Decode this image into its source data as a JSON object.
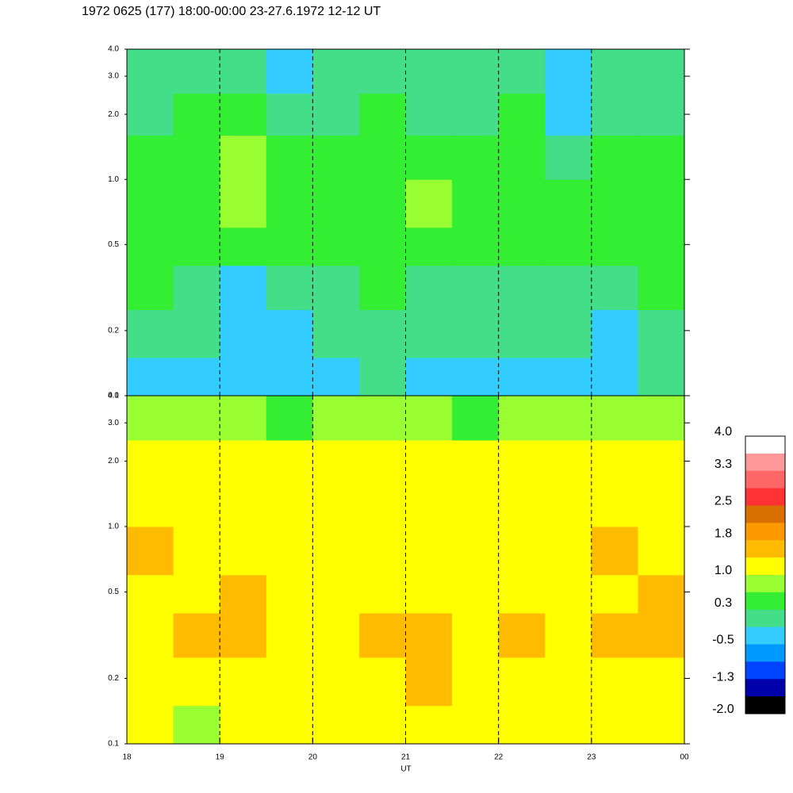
{
  "chart_data": {
    "type": "heatmap",
    "title": "1972 0625 (177) 18:00-00:00 23-27.6.1972  12-12 UT",
    "xlabel": "UT",
    "xlim": [
      18,
      24
    ],
    "xticks": [
      18,
      19,
      20,
      21,
      22,
      23,
      {
        "value": 24,
        "label": "00"
      }
    ],
    "grid": "dashed",
    "ylim": [
      0.1,
      4.0
    ],
    "yscale": "log",
    "yticks": [
      0.1,
      0.2,
      0.5,
      {
        "value": 1.0,
        "label": "1.0"
      },
      {
        "value": 2.0,
        "label": "2.0"
      },
      {
        "value": 3.0,
        "label": "3.0"
      },
      {
        "value": 4.0,
        "label": "4.0"
      }
    ],
    "xbins": [
      18,
      18.5,
      19,
      19.5,
      20,
      20.5,
      21,
      21.5,
      22,
      22.5,
      23,
      23.5,
      24
    ],
    "ybins": [
      0.1,
      0.15,
      0.25,
      0.4,
      0.6,
      1.0,
      1.6,
      2.5,
      4.0
    ],
    "panels": [
      {
        "z": [
          [
            -0.3,
            -0.2,
            -0.3,
            -0.4,
            -0.2,
            -0.1,
            -0.3,
            -0.2,
            -0.3,
            -0.2,
            -0.3,
            -0.1
          ],
          [
            0,
            -0.1,
            -0.2,
            -0.3,
            0,
            0.1,
            -0.1,
            0,
            -0.1,
            0,
            -0.2,
            0
          ],
          [
            0.3,
            0.2,
            -0.3,
            -0.1,
            0.2,
            0.3,
            0.1,
            0.2,
            0.1,
            0.2,
            0,
            0.3
          ],
          [
            0.4,
            0.5,
            0.3,
            0.4,
            0.5,
            0.4,
            0.5,
            0.3,
            0.4,
            0.5,
            0.4,
            0.4
          ],
          [
            0.5,
            0.6,
            0.8,
            0.5,
            0.4,
            0.5,
            0.7,
            0.5,
            0.6,
            0.4,
            0.6,
            0.5
          ],
          [
            0.4,
            0.5,
            0.7,
            0.4,
            0.3,
            0.4,
            0.5,
            0.3,
            0.5,
            0.2,
            0.6,
            0.4
          ],
          [
            0.2,
            0.3,
            0.3,
            0,
            0.2,
            0.3,
            0.2,
            0.1,
            0.3,
            -0.2,
            0.2,
            0.2
          ],
          [
            0,
            0.1,
            0,
            -0.3,
            0,
            0.1,
            0,
            -0.1,
            0,
            -0.4,
            -0.1,
            0
          ]
        ]
      },
      {
        "z": [
          [
            1.1,
            0.9,
            1.1,
            1.0,
            1.2,
            1.1,
            1.2,
            1.0,
            1.1,
            1.0,
            1.1,
            1.2
          ],
          [
            1.2,
            1.1,
            1.2,
            1.0,
            1.3,
            1.2,
            1.4,
            1.2,
            1.3,
            1.2,
            1.3,
            1.3
          ],
          [
            1.3,
            1.4,
            1.5,
            1.1,
            1.3,
            1.4,
            1.5,
            1.3,
            1.4,
            1.3,
            1.4,
            1.4
          ],
          [
            1.2,
            1.3,
            1.5,
            1.1,
            1.2,
            1.2,
            1.3,
            1.2,
            1.3,
            1.2,
            1.3,
            1.5
          ],
          [
            1.4,
            1.3,
            1.2,
            1.2,
            1.1,
            1.2,
            1.2,
            1.3,
            1.1,
            1.2,
            1.5,
            1.3
          ],
          [
            1.2,
            1.1,
            1.2,
            1.1,
            1.0,
            1.1,
            1.2,
            1.1,
            1.0,
            1.1,
            1.2,
            1.1
          ],
          [
            1.1,
            1.2,
            1.1,
            1.2,
            1.1,
            1.0,
            1.1,
            1.0,
            1.1,
            1.2,
            1.1,
            1.1
          ],
          [
            0.7,
            0.8,
            0.7,
            0.6,
            0.7,
            0.8,
            0.7,
            0.6,
            0.7,
            0.8,
            0.7,
            0.7
          ]
        ]
      }
    ],
    "colorbar": {
      "clim": [
        -2,
        4
      ],
      "colors": [
        "#ffffff",
        "#ff9999",
        "#ff6666",
        "#ff3333",
        "#d77000",
        "#ff9900",
        "#ffbb00",
        "#ffff00",
        "#99ff33",
        "#33ee33",
        "#44dd88",
        "#33ccff",
        "#0099ff",
        "#0044ff",
        "#0000aa",
        "#000000"
      ],
      "ticks": [
        {
          "value": 4.0,
          "label": "4.0"
        },
        3.3,
        2.5,
        1.8,
        {
          "value": 1.0,
          "label": "1.0"
        },
        0.3,
        -0.5,
        -1.3,
        {
          "value": -2.0,
          "label": "-2.0"
        }
      ]
    }
  }
}
